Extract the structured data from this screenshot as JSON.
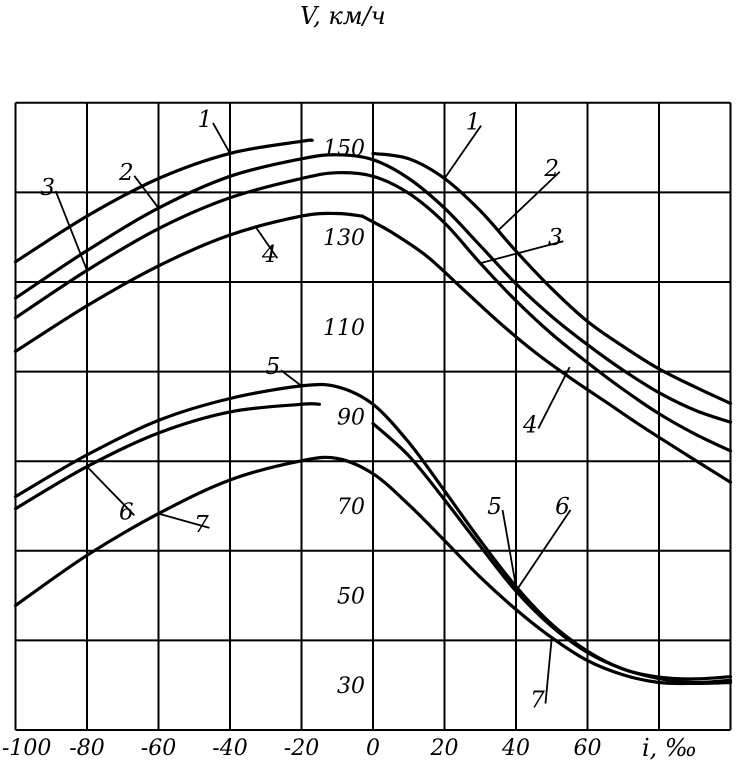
{
  "chart_data": {
    "type": "line",
    "title": "",
    "xlabel": "i, ‰",
    "ylabel": "V, км/ч",
    "xlim": [
      -100,
      100
    ],
    "ylim": [
      20,
      160
    ],
    "x_ticks": [
      -100,
      -80,
      -60,
      -40,
      -20,
      0,
      20,
      40,
      60
    ],
    "x_tick_labels": [
      "-100",
      "-80",
      "-60",
      "-40",
      "-20",
      "0",
      "20",
      "40",
      "60"
    ],
    "y_ticks": [
      30,
      50,
      70,
      90,
      110,
      130,
      150
    ],
    "y_tick_labels": [
      "30",
      "50",
      "70",
      "90",
      "110",
      "130",
      "150"
    ],
    "grid": true,
    "series": [
      {
        "name": "1",
        "x": [
          -100,
          -80,
          -60,
          -40,
          -20,
          -17
        ],
        "y": [
          124.5,
          134.7,
          143.1,
          148.7,
          151.4,
          151.6
        ]
      },
      {
        "name": "1",
        "x": [
          0,
          10,
          20,
          30,
          40,
          50,
          60,
          70,
          80,
          90,
          100
        ],
        "y": [
          148.7,
          147.5,
          143.1,
          135.9,
          126.9,
          118.5,
          111.2,
          105.6,
          100.6,
          96.6,
          92.9
        ]
      },
      {
        "name": "2",
        "x": [
          -100,
          -80,
          -60,
          -40,
          -20,
          -10,
          0,
          10,
          20,
          30,
          40,
          50,
          60,
          70,
          80,
          90,
          100
        ],
        "y": [
          116.4,
          127.0,
          136.5,
          143.6,
          147.5,
          148.4,
          147.3,
          143.1,
          136.5,
          128.1,
          119.6,
          112.3,
          106.0,
          100.3,
          95.3,
          91.4,
          88.7
        ]
      },
      {
        "name": "3",
        "x": [
          -100,
          -80,
          -60,
          -40,
          -20,
          -10,
          0,
          10,
          20,
          30,
          40,
          50,
          60,
          70,
          80,
          90,
          100
        ],
        "y": [
          112.0,
          122.6,
          131.9,
          138.8,
          143.1,
          144.4,
          143.6,
          139.8,
          133.2,
          124.2,
          115.8,
          108.4,
          102.0,
          96.0,
          90.6,
          86.1,
          82.3
        ]
      },
      {
        "name": "4",
        "x": [
          -100,
          -80,
          -60,
          -40,
          -20,
          -10,
          -3
        ],
        "y": [
          104.5,
          114.7,
          123.6,
          130.5,
          134.7,
          135.3,
          134.7
        ]
      },
      {
        "name": "4",
        "x": [
          -3,
          5,
          15,
          25,
          35,
          45,
          55,
          65,
          75,
          85,
          100
        ],
        "y": [
          134.7,
          131.2,
          125.8,
          118.5,
          111.2,
          104.5,
          98.7,
          93.3,
          87.9,
          82.8,
          75.3
        ]
      },
      {
        "name": "5",
        "x": [
          -100,
          -80,
          -60,
          -40,
          -20,
          -10,
          0,
          10,
          20,
          30,
          40,
          50,
          60,
          70,
          80,
          90,
          100
        ],
        "y": [
          72.1,
          81.4,
          89.1,
          94.0,
          96.8,
          96.6,
          92.7,
          84.2,
          73.4,
          62.3,
          52.0,
          43.6,
          37.6,
          33.6,
          31.8,
          31.4,
          31.9
        ]
      },
      {
        "name": "6",
        "x": [
          -100,
          -80,
          -60,
          -40,
          -20,
          -15
        ],
        "y": [
          69.4,
          78.8,
          86.3,
          91.0,
          92.7,
          92.7
        ]
      },
      {
        "name": "6",
        "x": [
          0,
          10,
          20,
          30,
          40,
          50,
          60,
          70,
          80,
          90,
          100
        ],
        "y": [
          88.4,
          81.2,
          71.4,
          61.0,
          51.0,
          43.1,
          37.3,
          33.6,
          31.5,
          30.6,
          31.1
        ]
      },
      {
        "name": "7",
        "x": [
          -100,
          -80,
          -60,
          -40,
          -20,
          -10,
          0,
          10,
          20,
          30,
          40,
          50,
          60,
          70,
          80,
          90,
          100
        ],
        "y": [
          47.8,
          59.0,
          68.3,
          75.8,
          80.1,
          80.6,
          77.2,
          70.3,
          62.3,
          54.1,
          46.9,
          40.6,
          35.5,
          32.3,
          30.6,
          30.4,
          30.6
        ]
      }
    ],
    "labels": [
      {
        "text": "1",
        "x": -47,
        "y": 156.4
      },
      {
        "text": "2",
        "x": -69,
        "y": 144.6
      },
      {
        "text": "3",
        "x": -91,
        "y": 141.2
      },
      {
        "text": "4",
        "x": -29,
        "y": 126.2
      },
      {
        "text": "1",
        "x": 28,
        "y": 155.8
      },
      {
        "text": "2",
        "x": 50,
        "y": 145.5
      },
      {
        "text": "3",
        "x": 51,
        "y": 130.0
      },
      {
        "text": "4",
        "x": 44,
        "y": 88.2
      },
      {
        "text": "5",
        "x": -28,
        "y": 101.2
      },
      {
        "text": "6",
        "x": -69,
        "y": 68.8
      },
      {
        "text": "7",
        "x": -48,
        "y": 66.0
      },
      {
        "text": "5",
        "x": 34,
        "y": 70.0
      },
      {
        "text": "6",
        "x": 53,
        "y": 70.0
      },
      {
        "text": "7",
        "x": 46,
        "y": 26.8
      }
    ]
  }
}
